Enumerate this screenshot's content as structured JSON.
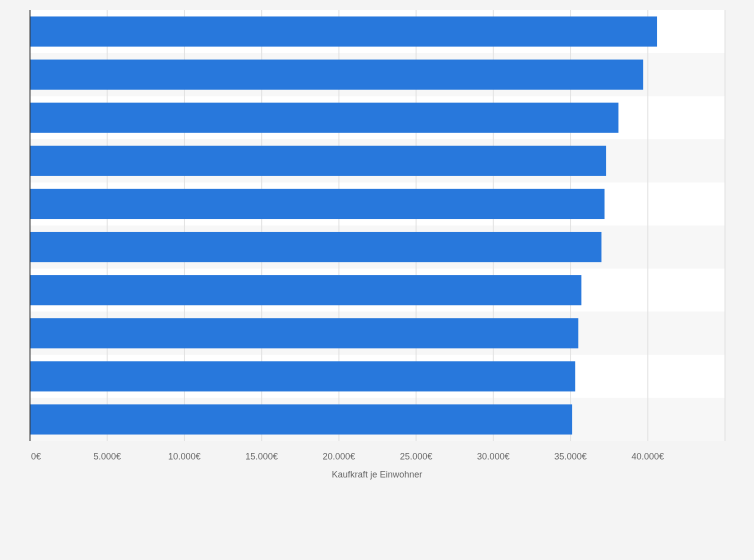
{
  "chart_data": {
    "type": "bar",
    "orientation": "horizontal",
    "x_label": "Kaufkraft je Einwohner",
    "categories": [
      null,
      null,
      null,
      null,
      null,
      null,
      null,
      null,
      null,
      null
    ],
    "values": [
      40600,
      39700,
      38100,
      37300,
      37200,
      37000,
      35700,
      35500,
      35300,
      35100
    ],
    "color": "#2878dc",
    "xlim": [
      0,
      45000
    ],
    "xticks": [
      {
        "value": 0,
        "label": "0€"
      },
      {
        "value": 5000,
        "label": "5.000€"
      },
      {
        "value": 10000,
        "label": "10.000€"
      },
      {
        "value": 15000,
        "label": "15.000€"
      },
      {
        "value": 20000,
        "label": "20.000€"
      },
      {
        "value": 25000,
        "label": "25.000€"
      },
      {
        "value": 30000,
        "label": "30.000€"
      },
      {
        "value": 35000,
        "label": "35.000€"
      },
      {
        "value": 40000,
        "label": "40.000€"
      }
    ],
    "grid": true
  }
}
